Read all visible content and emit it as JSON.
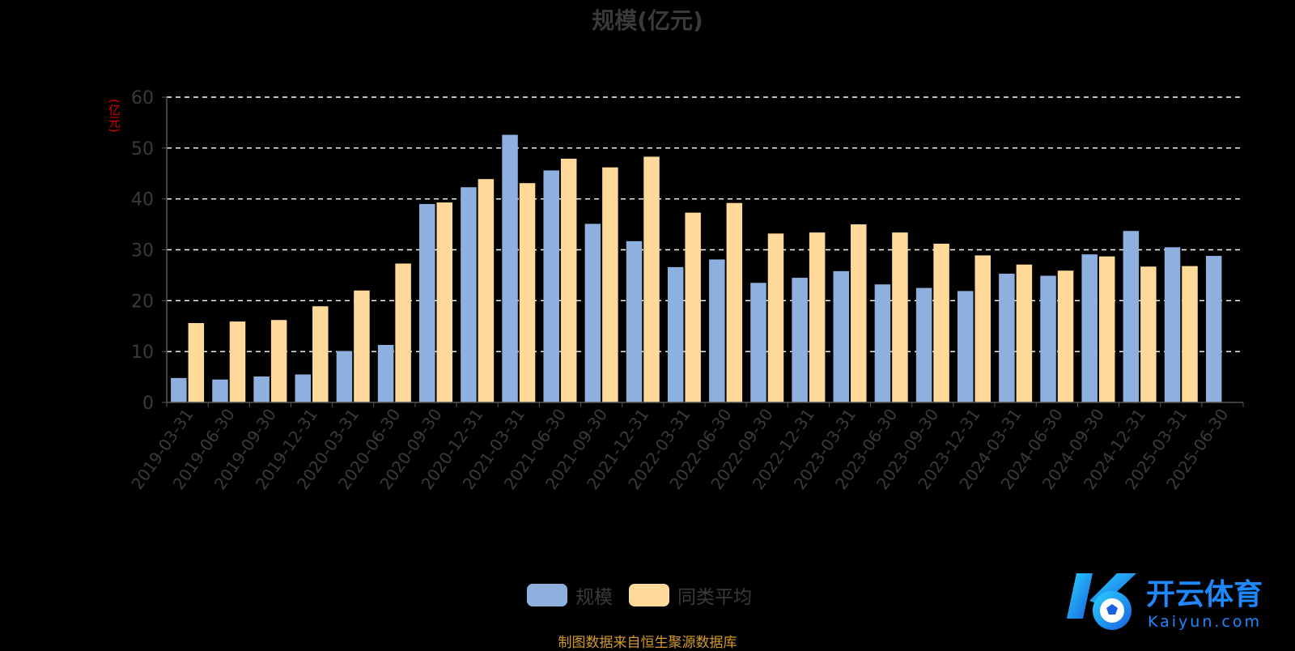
{
  "chart_data": {
    "type": "bar",
    "title": "规模(亿元)",
    "ylabel": "(亿元)",
    "ylim": [
      0,
      60
    ],
    "yticks": [
      0,
      10,
      20,
      30,
      40,
      50,
      60
    ],
    "grid": true,
    "legend_position": "bottom",
    "categories": [
      "2019-03-31",
      "2019-06-30",
      "2019-09-30",
      "2019-12-31",
      "2020-03-31",
      "2020-06-30",
      "2020-09-30",
      "2020-12-31",
      "2021-03-31",
      "2021-06-30",
      "2021-09-30",
      "2021-12-31",
      "2022-03-31",
      "2022-06-30",
      "2022-09-30",
      "2022-12-31",
      "2023-03-31",
      "2023-06-30",
      "2023-09-30",
      "2023-12-31",
      "2024-03-31",
      "2024-06-30",
      "2024-09-30",
      "2024-12-31",
      "2025-03-31",
      "2025-06-30"
    ],
    "series": [
      {
        "name": "规模",
        "color": "#8eb0df",
        "values": [
          4.8,
          4.5,
          5.1,
          5.5,
          10.1,
          11.3,
          39.0,
          42.3,
          52.6,
          45.6,
          35.1,
          31.7,
          26.6,
          28.1,
          23.5,
          24.5,
          25.8,
          23.2,
          22.5,
          21.9,
          25.3,
          24.9,
          29.1,
          33.7,
          30.5,
          28.8
        ]
      },
      {
        "name": "同类平均",
        "color": "#ffd999",
        "values": [
          15.6,
          15.9,
          16.2,
          18.9,
          22.0,
          27.3,
          39.3,
          43.9,
          43.1,
          47.9,
          46.2,
          48.3,
          37.3,
          39.2,
          33.2,
          33.4,
          35.0,
          33.4,
          31.2,
          28.9,
          27.1,
          25.9,
          28.7,
          26.7,
          26.8,
          null
        ]
      }
    ]
  },
  "footer": {
    "note": "制图数据来自恒生聚源数据库"
  },
  "watermark": {
    "brand": "开云体育",
    "domain": "Kaiyun.com"
  },
  "colors": {
    "background": "#000000",
    "grid": "#ffffff",
    "axis_text": "#3a3a3a",
    "unit_label": "#d40000",
    "footer": "#d39a2a"
  }
}
